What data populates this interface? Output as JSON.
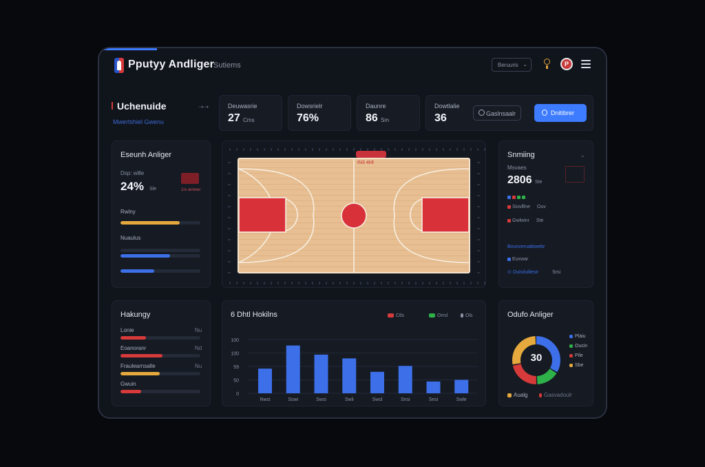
{
  "header": {
    "title": "Pputyy Andliger",
    "subtitle": "Sutiems",
    "search_label": "Beruuris",
    "avatar_initial": "P"
  },
  "page": {
    "title": "Uchenuide",
    "subtitle": "Mwertshiel Gwenu"
  },
  "stats": [
    {
      "label": "Deuwasrie",
      "value": "27",
      "unit": "Cms"
    },
    {
      "label": "Dowsrielr",
      "value": "76%",
      "unit": ""
    },
    {
      "label": "Daunre",
      "value": "86",
      "unit": "Sm"
    },
    {
      "label": "Dowtlalie",
      "value": "36",
      "unit": ""
    }
  ],
  "actions": {
    "outline_label": "Gaslnsaalr",
    "primary_label": "Dnitibrer"
  },
  "left_panel": {
    "title": "Eseunh Anliger",
    "metric_label": "Dsp: wllle",
    "metric_value": "24%",
    "metric_unit": "Sle",
    "badge_text": "1rs arniver",
    "bars": [
      {
        "label": "Rwlny",
        "fraction": 0.74,
        "color": "#e6a93d"
      },
      {
        "label": "Nuaulus",
        "fraction": 0.0,
        "color": "#3d6fe8"
      },
      {
        "label": "",
        "fraction": 0.62,
        "color": "#3d6fe8"
      },
      {
        "label": "",
        "fraction": 0.42,
        "color": "#3d6fe8"
      }
    ]
  },
  "court": {
    "tag_text": "IN3 4lrll"
  },
  "right_panel": {
    "title": "Snmiing",
    "subtitle": "Msvaes",
    "metric_value": "2806",
    "metric_unit": "Ste",
    "rows": [
      {
        "label": "Siuvlllne",
        "value": "Ouv"
      },
      {
        "label": "Gwlwinr",
        "value": "Ste"
      },
      {
        "label": "Bounveruabiwebr",
        "value": ""
      },
      {
        "label": "Euxwar",
        "value": ""
      },
      {
        "label": "Ouisilulilesir",
        "value": "Srsi"
      }
    ]
  },
  "history_panel": {
    "title": "Hakungy",
    "rows": [
      {
        "label": "Lonie",
        "value": "Nu",
        "fraction": 0.32,
        "color": "#d63a3a"
      },
      {
        "label": "Eoanoranr",
        "value": "Nd",
        "fraction": 0.53,
        "color": "#d63a3a"
      },
      {
        "label": "Fraulearnsalle",
        "value": "Nu",
        "fraction": 0.49,
        "color": "#e6a93d"
      },
      {
        "label": "Gwuin",
        "value": "",
        "fraction": 0.26,
        "color": "#d63a3a"
      }
    ]
  },
  "chart_panel": {
    "title": "6 Dhtl Hokilns",
    "legend": [
      {
        "label": "Ctls",
        "color": "#d63a3a"
      },
      {
        "label": "Orrsl",
        "color": "#2fb14a"
      },
      {
        "label": "Ols",
        "color": "#8d95a5"
      }
    ]
  },
  "chart_data": {
    "type": "bar",
    "title": "6 Dhtl Hokilns",
    "categories": [
      "Nwsi",
      "Sswi",
      "Swsi",
      "Swli",
      "Swsl",
      "Snsi",
      "Sesi",
      "Swle"
    ],
    "values": [
      46,
      89,
      72,
      65,
      40,
      51,
      22,
      25
    ],
    "y_ticks": [
      "100",
      "100",
      "59",
      "50",
      "0"
    ],
    "ylim": [
      0,
      100
    ],
    "grid": true,
    "legend_position": "top-right",
    "color": "#3d6fe8"
  },
  "donut_panel": {
    "title": "Odufo Anliger",
    "center_value": "30",
    "footer_left": "Aualg",
    "footer_right": "Gasvadoulr",
    "segments": [
      {
        "label": "Plaiu",
        "value": 34,
        "color": "#3d6fe8"
      },
      {
        "label": "Oucin",
        "value": 16,
        "color": "#2fb14a"
      },
      {
        "label": "Pile",
        "value": 22,
        "color": "#d63a3a"
      },
      {
        "label": "Sbe",
        "value": 28,
        "color": "#e6a93d"
      }
    ]
  }
}
